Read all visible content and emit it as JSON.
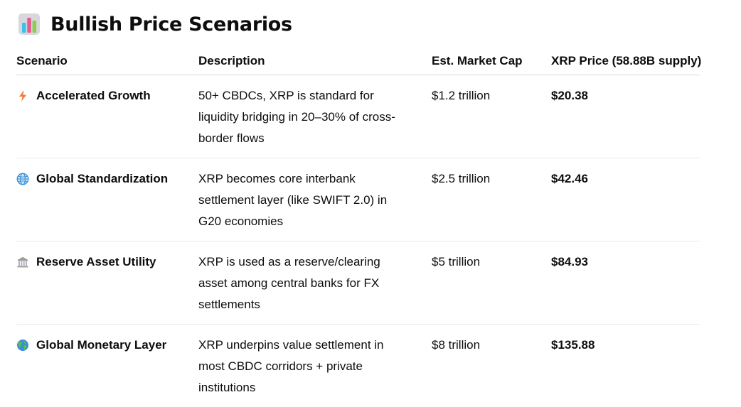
{
  "heading": {
    "icon": "bar-chart-icon",
    "title": "Bullish Price Scenarios"
  },
  "table": {
    "columns": [
      "Scenario",
      "Description",
      "Est. Market Cap",
      "XRP Price (58.88B supply)"
    ],
    "rows": [
      {
        "icon": "lightning-icon",
        "scenario": "Accelerated Growth",
        "description": "50+ CBDCs, XRP is standard for liquidity bridging in 20–30% of cross-border flows",
        "market_cap": "$1.2 trillion",
        "price": "$20.38"
      },
      {
        "icon": "globe-meridians-icon",
        "scenario": "Global Standardization",
        "description": "XRP becomes core interbank settlement layer (like SWIFT 2.0) in G20 economies",
        "market_cap": "$2.5 trillion",
        "price": "$42.46"
      },
      {
        "icon": "bank-icon",
        "scenario": "Reserve Asset Utility",
        "description": "XRP is used as a reserve/clearing asset among central banks for FX settlements",
        "market_cap": "$5 trillion",
        "price": "$84.93"
      },
      {
        "icon": "earth-globe-icon",
        "scenario": "Global Monetary Layer",
        "description": "XRP underpins value settlement in most CBDC corridors + private institutions",
        "market_cap": "$8 trillion",
        "price": "$135.88"
      }
    ]
  },
  "colors": {
    "text": "#0d0d0d",
    "header_rule": "#d9d9d9",
    "row_rule": "#ececec",
    "lightning": "#f47b38",
    "globe_blue": "#3a8fd6",
    "bank_gray": "#9a9ba0"
  }
}
